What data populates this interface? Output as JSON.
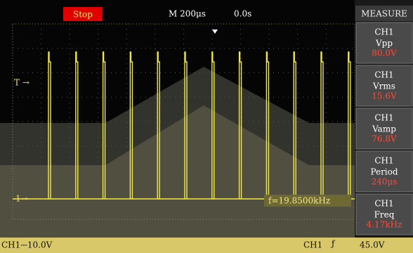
{
  "header": {
    "status": "Stop",
    "timebase": "M 200μs",
    "position": "0.0s"
  },
  "menu": {
    "title": "MEASURE",
    "items": [
      {
        "channel": "CH1",
        "label": "Vpp",
        "value": "80.0V"
      },
      {
        "channel": "CH1",
        "label": "Vrms",
        "value": "15.6V"
      },
      {
        "channel": "CH1",
        "label": "Vamp",
        "value": "76.8V"
      },
      {
        "channel": "CH1",
        "label": "Period",
        "value": "240μs"
      },
      {
        "channel": "CH1",
        "label": "Freq",
        "value": "4.17kHz"
      }
    ]
  },
  "markers": {
    "trigger_level": "T →",
    "channel": "1→"
  },
  "readout": "f=19.8500kHz",
  "footer": {
    "channel_scale": "CH1⎓10.0V",
    "trigger_source": "CH1",
    "trigger_edge": "ƒ",
    "trigger_value": "45.0V"
  }
}
